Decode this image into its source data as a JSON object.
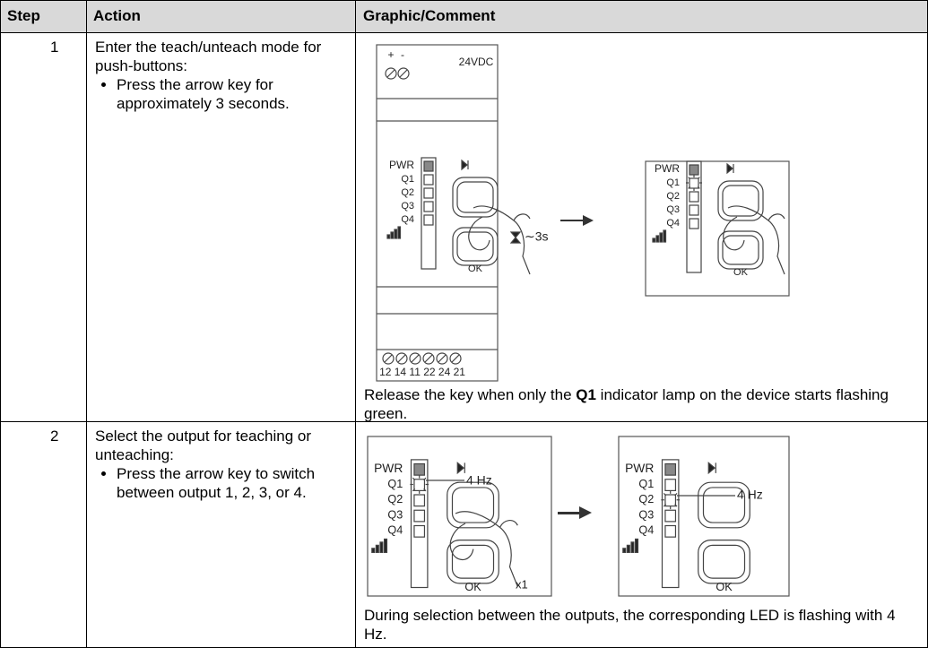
{
  "table": {
    "headers": [
      "Step",
      "Action",
      "Graphic/Comment"
    ],
    "rows": [
      {
        "step": "1",
        "action_intro": "Enter the teach/unteach mode for push-buttons:",
        "action_bullet": "Press the arrow key for approximately 3 seconds.",
        "comment": [
          "Release the key when only the ",
          "Q1",
          " indicator lamp on the device starts flashing green."
        ],
        "figure": {
          "plus": "+",
          "minus": "-",
          "supply": "24VDC",
          "duration": "∼3s",
          "terminals": "12 14 11 22 24 21"
        }
      },
      {
        "step": "2",
        "action_intro": "Select the output for teaching or unteaching:",
        "action_bullet": "Press the arrow key to switch between output 1, 2, 3, or 4.",
        "comment": [
          "During selection between the outputs, the corresponding LED is flashing with 4 Hz."
        ],
        "figure": {
          "frequency": "4 Hz",
          "count": "x1"
        }
      }
    ],
    "panel_labels": {
      "power": "PWR",
      "outputs": [
        "Q1",
        "Q2",
        "Q3",
        "Q4"
      ],
      "ok": "OK"
    }
  }
}
